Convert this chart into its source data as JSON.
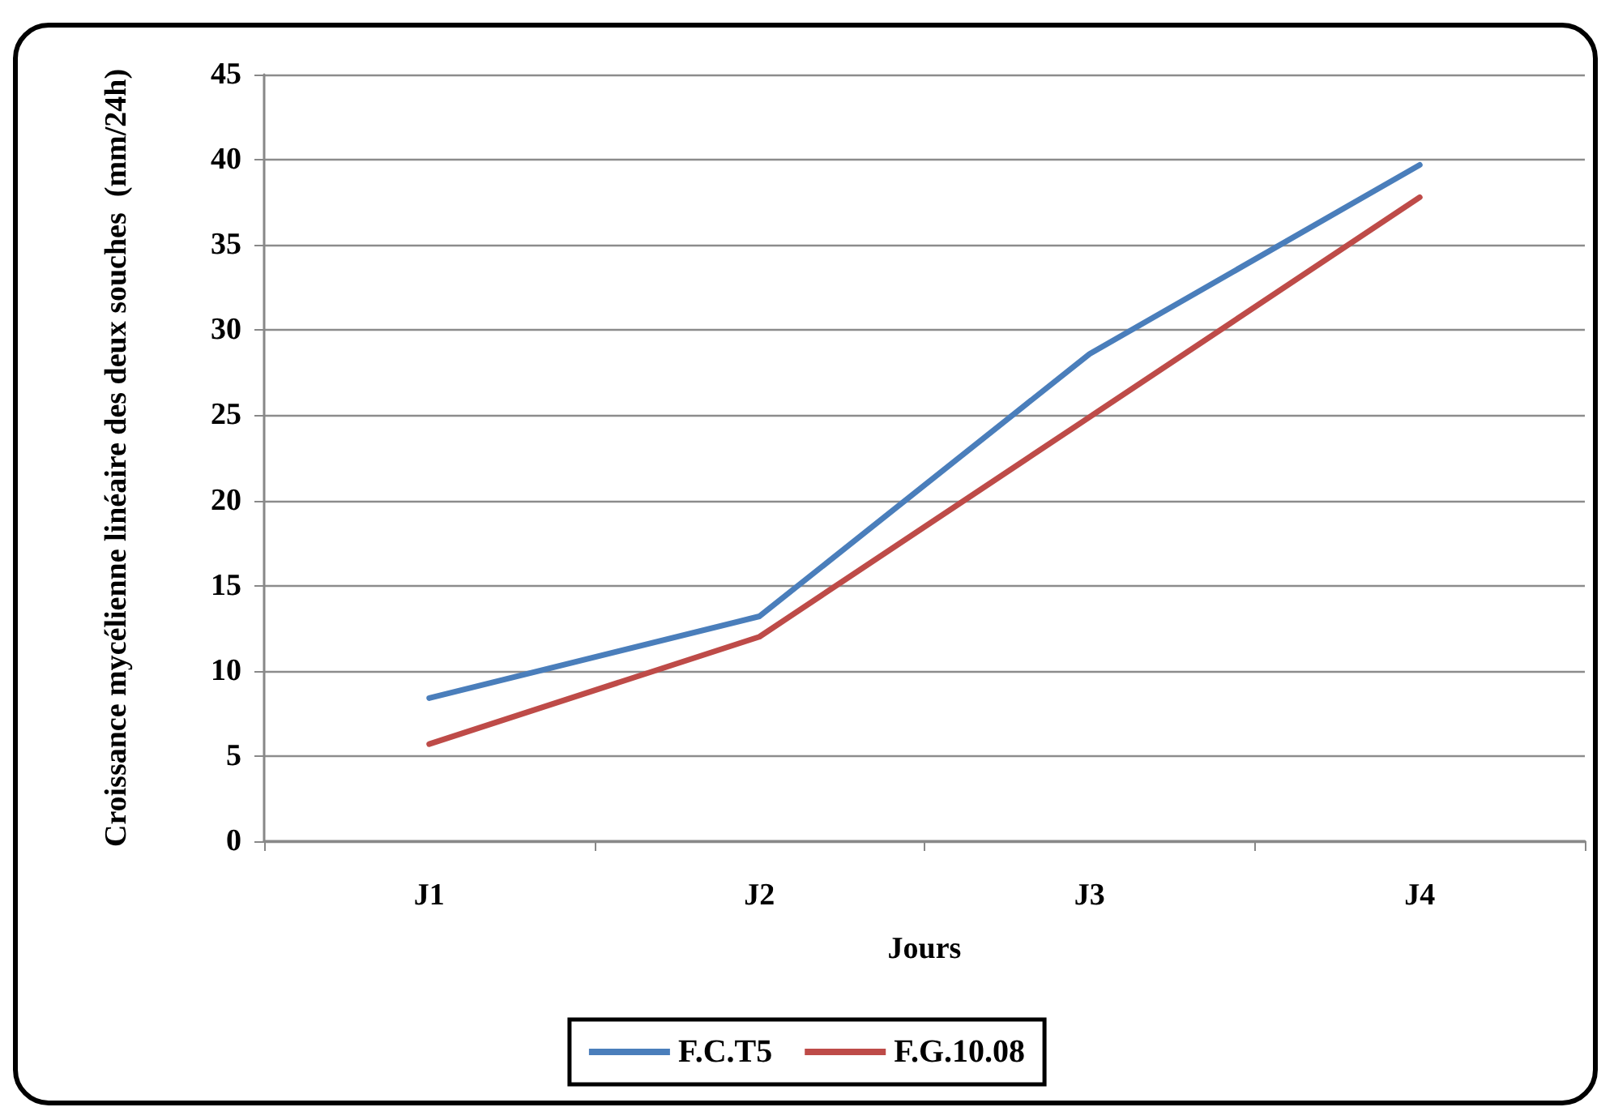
{
  "chart_data": {
    "type": "line",
    "xlabel": "Jours",
    "ylabel": "Croissance mycélienne linéaire des deux souches  (mm/24h)",
    "categories": [
      "J1",
      "J2",
      "J3",
      "J4"
    ],
    "series": [
      {
        "name": "F.C.T5",
        "color": "#4a7ebb",
        "values": [
          8.4,
          13.2,
          28.6,
          39.7
        ]
      },
      {
        "name": "F.G.10.08",
        "color": "#be4b48",
        "values": [
          5.7,
          12.0,
          24.9,
          37.8
        ]
      }
    ],
    "ylim": [
      0,
      45
    ],
    "yticks": [
      0,
      5,
      10,
      15,
      20,
      25,
      30,
      35,
      40,
      45
    ],
    "grid": "y",
    "legend": "bottom",
    "marker": "none",
    "line_style": "solid"
  }
}
